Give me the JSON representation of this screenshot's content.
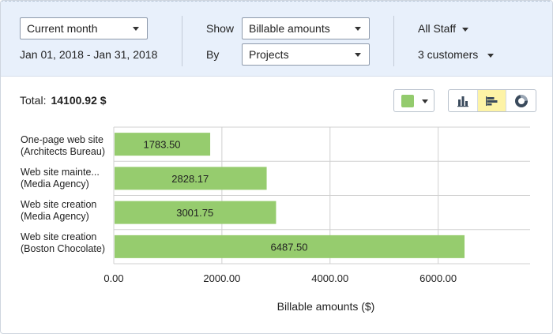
{
  "filters": {
    "period": "Current month",
    "date_range": "Jan 01, 2018 - Jan 31, 2018",
    "show_label": "Show",
    "show_value": "Billable amounts",
    "by_label": "By",
    "by_value": "Projects",
    "staff": "All Staff",
    "customers": "3 customers"
  },
  "summary": {
    "total_label": "Total:",
    "total_value": "14100.92 $"
  },
  "colors": {
    "bar": "#96cc6e",
    "grid": "#d0d0d0",
    "active_toggle": "#fdf3a6"
  },
  "icons": {
    "color_picker": "color-swatch-icon",
    "toggles": [
      "column-chart-icon",
      "bar-chart-icon",
      "donut-chart-icon"
    ],
    "active_toggle": "bar-chart-icon"
  },
  "chart_data": {
    "type": "bar",
    "orientation": "horizontal",
    "categories": [
      [
        "One-page web site",
        "(Architects Bureau)"
      ],
      [
        "Web site mainte...",
        "(Media Agency)"
      ],
      [
        "Web site creation",
        "(Media Agency)"
      ],
      [
        "Web site creation",
        "(Boston Chocolate)"
      ]
    ],
    "values": [
      1783.5,
      2828.17,
      3001.75,
      6487.5
    ],
    "value_labels": [
      "1783.50",
      "2828.17",
      "3001.75",
      "6487.50"
    ],
    "xticks": [
      0,
      2000,
      4000,
      6000
    ],
    "xtick_labels": [
      "0.00",
      "2000.00",
      "4000.00",
      "6000.00"
    ],
    "xlim": [
      0,
      7700
    ],
    "xlabel": "Billable amounts ($)",
    "grid": true
  }
}
